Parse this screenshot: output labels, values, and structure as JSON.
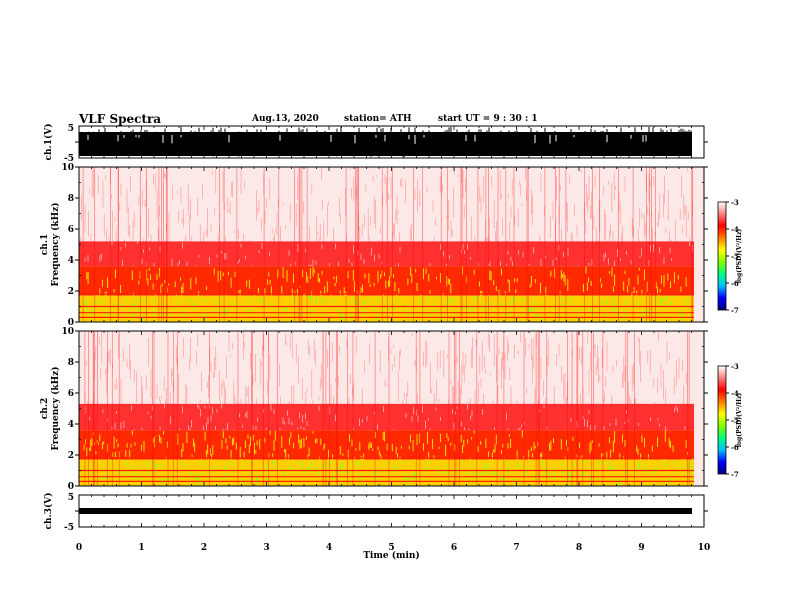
{
  "header": {
    "title": "VLF Spectra",
    "date": "Aug.13, 2020",
    "station": "station= ATH",
    "start": "start UT =  9 : 30 : 1"
  },
  "colors": {
    "background": "#ffffff",
    "spectrogram_high": "#ff0000",
    "spectrogram_mid": "#ffff00",
    "spectrogram_low": "#00ff00",
    "colorbar": [
      "#000080",
      "#0000ff",
      "#00c0ff",
      "#00ff80",
      "#80ff00",
      "#ffff00",
      "#ff8000",
      "#ff0000",
      "#ff8080",
      "#ffffff"
    ]
  },
  "chart_data": [
    {
      "type": "line",
      "ylabel": "ch.1(V)",
      "ylim": [
        -5,
        5
      ],
      "yticks": [
        "5",
        "-5"
      ],
      "description_values": {
        "min": -5,
        "max": 5
      }
    },
    {
      "type": "heatmap",
      "ylabel_top": "ch.1",
      "ylabel": "Frequency (kHz)",
      "ylim": [
        0,
        10
      ],
      "yticks": [
        "0",
        "2",
        "4",
        "6",
        "8",
        "10"
      ],
      "bands_khz": [
        {
          "from": 5.2,
          "to": 10,
          "level": "faint"
        },
        {
          "from": 3.6,
          "to": 5.2,
          "level": "high"
        },
        {
          "from": 1.7,
          "to": 3.6,
          "level": "mixed"
        },
        {
          "from": 0,
          "to": 1.7,
          "level": "mid"
        }
      ],
      "colorbar": {
        "ticks": [
          "-3",
          "-4",
          "-5",
          "-6",
          "-7"
        ],
        "label": "log(PSD)(V²/Hz)",
        "range": [
          -7,
          -3
        ]
      }
    },
    {
      "type": "heatmap",
      "ylabel_top": "ch.2",
      "ylabel": "Frequency (kHz)",
      "ylim": [
        0,
        10
      ],
      "yticks": [
        "0",
        "2",
        "4",
        "6",
        "8",
        "10"
      ],
      "bands_khz": [
        {
          "from": 5.3,
          "to": 10,
          "level": "faint"
        },
        {
          "from": 3.6,
          "to": 5.3,
          "level": "high"
        },
        {
          "from": 1.7,
          "to": 3.6,
          "level": "mixed"
        },
        {
          "from": 0,
          "to": 1.7,
          "level": "mid"
        }
      ],
      "colorbar": {
        "ticks": [
          "-3",
          "-4",
          "-5",
          "-6",
          "-7"
        ],
        "label": "log(PSD)(V²/Hz)",
        "range": [
          -7,
          -3
        ]
      }
    },
    {
      "type": "line",
      "ylabel": "ch.3(V)",
      "ylim": [
        -5,
        5
      ],
      "yticks": [
        "5",
        "-5"
      ],
      "xlabel": "Time (min)",
      "xlim": [
        0,
        10
      ],
      "xticks": [
        "0",
        "1",
        "2",
        "3",
        "4",
        "5",
        "6",
        "7",
        "8",
        "9",
        "10"
      ]
    }
  ]
}
